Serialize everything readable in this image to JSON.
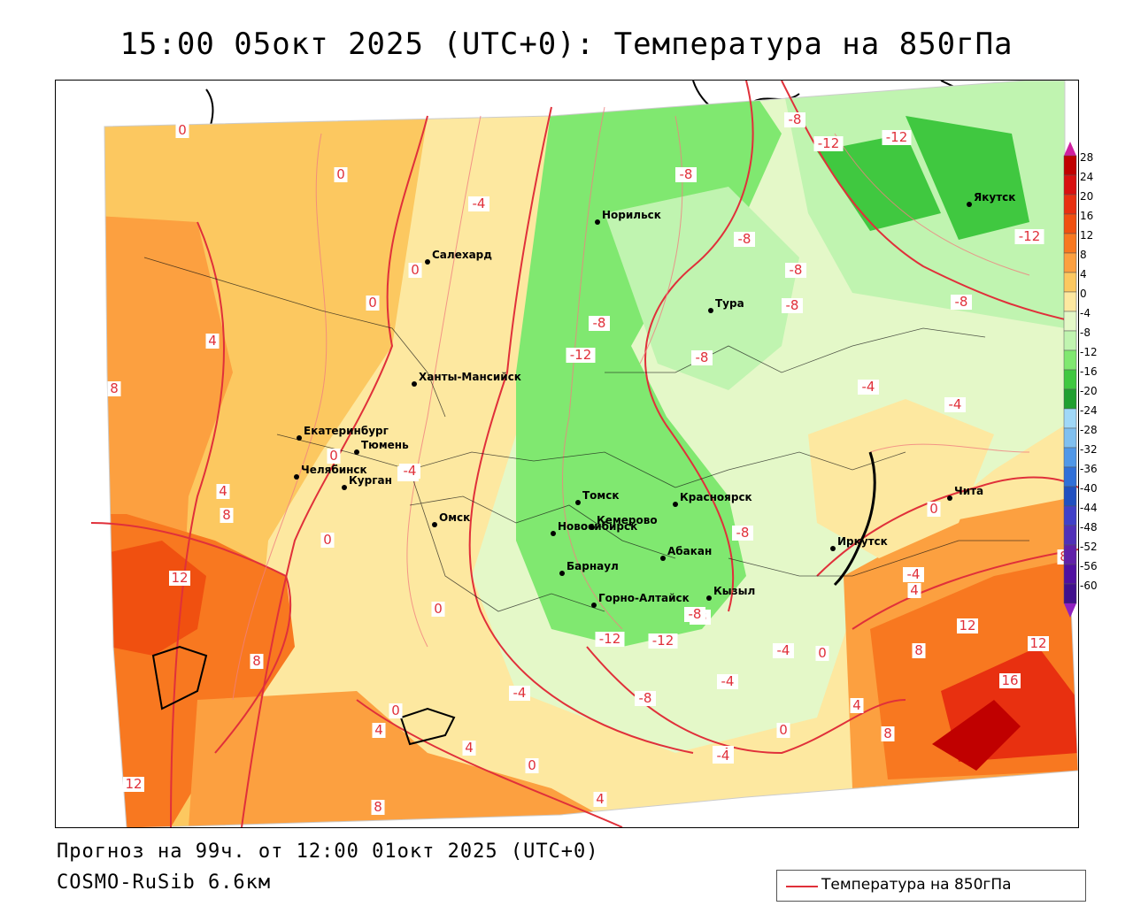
{
  "header": {
    "title": "15:00 05окт 2025 (UTC+0): Температура на 850гПа"
  },
  "footer": {
    "forecast": "Прогноз на 99ч. от 12:00 01окт 2025 (UTC+0)",
    "model": "COSMO-RuSib 6.6км"
  },
  "legend": {
    "label": "Температура на 850гПа",
    "line_color": "#e0303a"
  },
  "colorbar": {
    "ticks": [
      "28",
      "24",
      "20",
      "16",
      "12",
      "8",
      "4",
      "0",
      "-4",
      "-8",
      "-12",
      "-16",
      "-20",
      "-24",
      "-28",
      "-32",
      "-36",
      "-40",
      "-44",
      "-48",
      "-52",
      "-56",
      "-60"
    ],
    "colors": [
      "#c00000",
      "#d81010",
      "#e83010",
      "#f05010",
      "#f87820",
      "#fca040",
      "#fcc860",
      "#fde8a0",
      "#e4f8c8",
      "#c0f4b0",
      "#80e870",
      "#40c840",
      "#20a030",
      "#a0d8f8",
      "#80c0f0",
      "#5098e8",
      "#3070d8",
      "#2050c0",
      "#4040c8",
      "#5030b8",
      "#6020a8",
      "#5010a0",
      "#40108c"
    ]
  },
  "cities": [
    {
      "name": "Норильск"
    },
    {
      "name": "Салехард"
    },
    {
      "name": "Тура"
    },
    {
      "name": "Якутск"
    },
    {
      "name": "Ханты-Мансийск"
    },
    {
      "name": "Екатеринбург"
    },
    {
      "name": "Тюмень"
    },
    {
      "name": "Челябинск"
    },
    {
      "name": "Курган"
    },
    {
      "name": "Томск"
    },
    {
      "name": "Красноярск"
    },
    {
      "name": "Омск"
    },
    {
      "name": "Новосибирск"
    },
    {
      "name": "Кемерово"
    },
    {
      "name": "Абакан"
    },
    {
      "name": "Барнаул"
    },
    {
      "name": "Горно-Алтайск"
    },
    {
      "name": "Кызыл"
    },
    {
      "name": "Иркутск"
    },
    {
      "name": "Чита"
    }
  ],
  "contour_labels": [
    "0",
    "0",
    "0",
    "0",
    "-4",
    "-4",
    "-8",
    "-8",
    "-12",
    "-12",
    "-12",
    "-8",
    "-8",
    "-8",
    "-8",
    "-12",
    "-8",
    "-8",
    "-4",
    "-4",
    "4",
    "8",
    "4",
    "8",
    "0",
    "-4",
    "0",
    "12",
    "-8",
    "-12",
    "-12",
    "-8",
    "-8",
    "-4",
    "0",
    "-8",
    "-4",
    "-4",
    "8",
    "-4",
    "0",
    "12",
    "12",
    "16",
    "4",
    "8",
    "0",
    "4",
    "4",
    "0",
    "4",
    "8",
    "12",
    "8",
    "0",
    "-4",
    "-4",
    "0",
    "4",
    "8"
  ]
}
